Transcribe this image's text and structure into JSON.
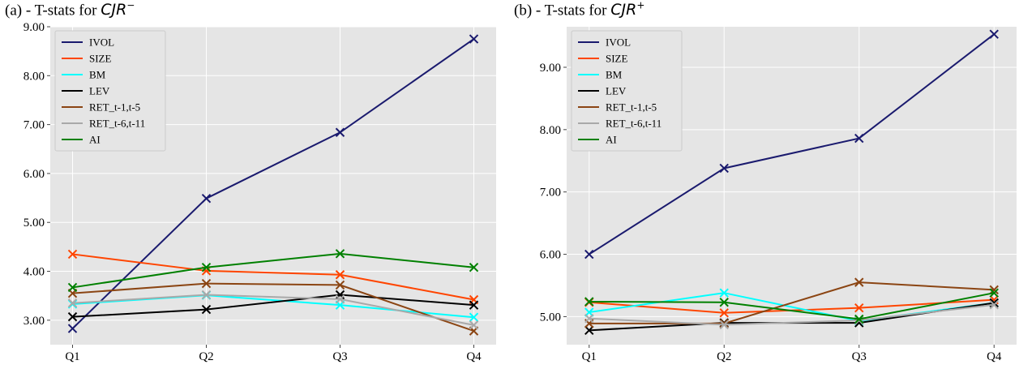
{
  "chart_data": [
    {
      "type": "line",
      "title_prefix": "(a) - T-stats for ",
      "title_math": "CJR",
      "title_sup": "−",
      "categories": [
        "Q1",
        "Q2",
        "Q3",
        "Q4"
      ],
      "ylim": [
        2.5,
        9.0
      ],
      "yticks": [
        "3.00",
        "4.00",
        "5.00",
        "6.00",
        "7.00",
        "8.00",
        "9.00"
      ],
      "grid": true,
      "legend": "upper-left",
      "marker": "x",
      "series": [
        {
          "name": "IVOL",
          "color": "#1a1a6e",
          "values": [
            2.83,
            5.49,
            6.84,
            8.75
          ]
        },
        {
          "name": "SIZE",
          "color": "#ff4500",
          "values": [
            4.35,
            4.01,
            3.93,
            3.42
          ]
        },
        {
          "name": "BM",
          "color": "#00ffff",
          "values": [
            3.33,
            3.51,
            3.31,
            3.06
          ]
        },
        {
          "name": "LEV",
          "color": "#000000",
          "values": [
            3.07,
            3.22,
            3.52,
            3.31
          ]
        },
        {
          "name": "RET_t-1,t-5",
          "color": "#8b4513",
          "values": [
            3.55,
            3.75,
            3.72,
            2.78
          ]
        },
        {
          "name": "RET_t-6,t-11",
          "color": "#a9a9a9",
          "values": [
            3.35,
            3.52,
            3.43,
            2.9
          ]
        },
        {
          "name": "AI",
          "color": "#008000",
          "values": [
            3.67,
            4.08,
            4.36,
            4.08
          ]
        }
      ]
    },
    {
      "type": "line",
      "title_prefix": "(b) - T-stats for ",
      "title_math": "CJR",
      "title_sup": "+",
      "categories": [
        "Q1",
        "Q2",
        "Q3",
        "Q4"
      ],
      "ylim": [
        4.55,
        9.65
      ],
      "yticks": [
        "5.00",
        "6.00",
        "7.00",
        "8.00",
        "9.00"
      ],
      "grid": true,
      "legend": "upper-left",
      "marker": "x",
      "series": [
        {
          "name": "IVOL",
          "color": "#1a1a6e",
          "values": [
            6.0,
            7.38,
            7.86,
            9.53
          ]
        },
        {
          "name": "SIZE",
          "color": "#ff4500",
          "values": [
            5.23,
            5.06,
            5.14,
            5.27
          ]
        },
        {
          "name": "BM",
          "color": "#00ffff",
          "values": [
            5.07,
            5.38,
            4.93,
            5.22
          ]
        },
        {
          "name": "LEV",
          "color": "#000000",
          "values": [
            4.78,
            4.9,
            4.9,
            5.22
          ]
        },
        {
          "name": "RET_t-1,t-5",
          "color": "#8b4513",
          "values": [
            4.89,
            4.89,
            5.55,
            5.43
          ]
        },
        {
          "name": "RET_t-6,t-11",
          "color": "#a9a9a9",
          "values": [
            4.97,
            4.87,
            4.94,
            5.19
          ]
        },
        {
          "name": "AI",
          "color": "#008000",
          "values": [
            5.24,
            5.23,
            4.96,
            5.38
          ]
        }
      ]
    }
  ]
}
